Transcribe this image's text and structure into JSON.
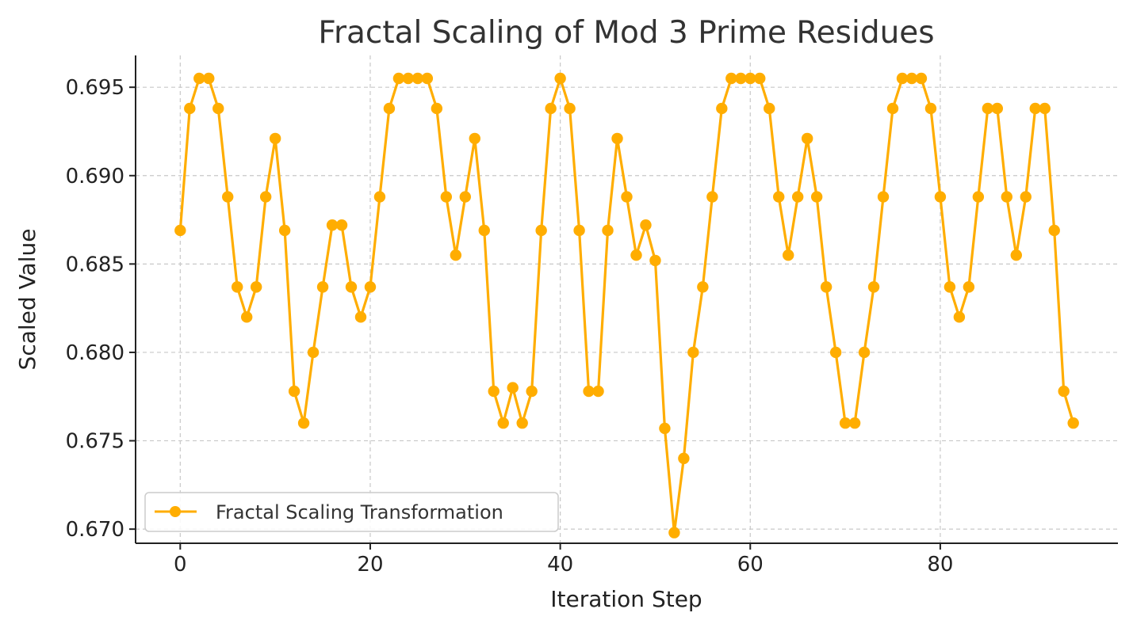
{
  "chart_data": {
    "type": "line",
    "title": "Fractal Scaling of Mod 3 Prime Residues",
    "xlabel": "Iteration Step",
    "ylabel": "Scaled Value",
    "xlim": [
      -4.7,
      98.7
    ],
    "ylim": [
      0.6692,
      0.6968
    ],
    "xticks": [
      0,
      20,
      40,
      60,
      80
    ],
    "yticks": [
      0.67,
      0.675,
      0.68,
      0.685,
      0.69,
      0.695
    ],
    "ytick_labels": [
      "0.670",
      "0.675",
      "0.680",
      "0.685",
      "0.690",
      "0.695"
    ],
    "grid": true,
    "legend": "lower-left",
    "series": [
      {
        "name": "Fractal Scaling Transformation",
        "color": "#FFAD00",
        "marker": "circle",
        "x": [
          0,
          1,
          2,
          3,
          4,
          5,
          6,
          7,
          8,
          9,
          10,
          11,
          12,
          13,
          14,
          15,
          16,
          17,
          18,
          19,
          20,
          21,
          22,
          23,
          24,
          25,
          26,
          27,
          28,
          29,
          30,
          31,
          32,
          33,
          34,
          35,
          36,
          37,
          38,
          39,
          40,
          41,
          42,
          43,
          44,
          45,
          46,
          47,
          48,
          49,
          50,
          51,
          52,
          53,
          54,
          55,
          56,
          57,
          58,
          59,
          60,
          61,
          62,
          63,
          64,
          65,
          66,
          67,
          68,
          69,
          70,
          71,
          72,
          73,
          74,
          75,
          76,
          77,
          78,
          79,
          80,
          81,
          82,
          83,
          84,
          85,
          86,
          87,
          88,
          89,
          90,
          91,
          92,
          93,
          94
        ],
        "y": [
          0.6869,
          0.6938,
          0.6955,
          0.6955,
          0.6938,
          0.6888,
          0.6837,
          0.682,
          0.6837,
          0.6888,
          0.6921,
          0.6869,
          0.6778,
          0.676,
          0.68,
          0.6837,
          0.6872,
          0.6872,
          0.6837,
          0.682,
          0.6837,
          0.6888,
          0.6938,
          0.6955,
          0.6955,
          0.6955,
          0.6955,
          0.6938,
          0.6888,
          0.6855,
          0.6888,
          0.6921,
          0.6869,
          0.6778,
          0.676,
          0.678,
          0.676,
          0.6778,
          0.6869,
          0.6938,
          0.6955,
          0.6938,
          0.6869,
          0.6778,
          0.6778,
          0.6869,
          0.6921,
          0.6888,
          0.6855,
          0.6872,
          0.6852,
          0.6757,
          0.6698,
          0.674,
          0.68,
          0.6837,
          0.6888,
          0.6938,
          0.6955,
          0.6955,
          0.6955,
          0.6955,
          0.6938,
          0.6888,
          0.6855,
          0.6888,
          0.6921,
          0.6888,
          0.6837,
          0.68,
          0.676,
          0.676,
          0.68,
          0.6837,
          0.6888,
          0.6938,
          0.6955,
          0.6955,
          0.6955,
          0.6938,
          0.6888,
          0.6837,
          0.682,
          0.6837,
          0.6888,
          0.6938,
          0.6938,
          0.6888,
          0.6855,
          0.6888,
          0.6938,
          0.6938,
          0.6869,
          0.6778,
          0.676
        ]
      }
    ]
  }
}
